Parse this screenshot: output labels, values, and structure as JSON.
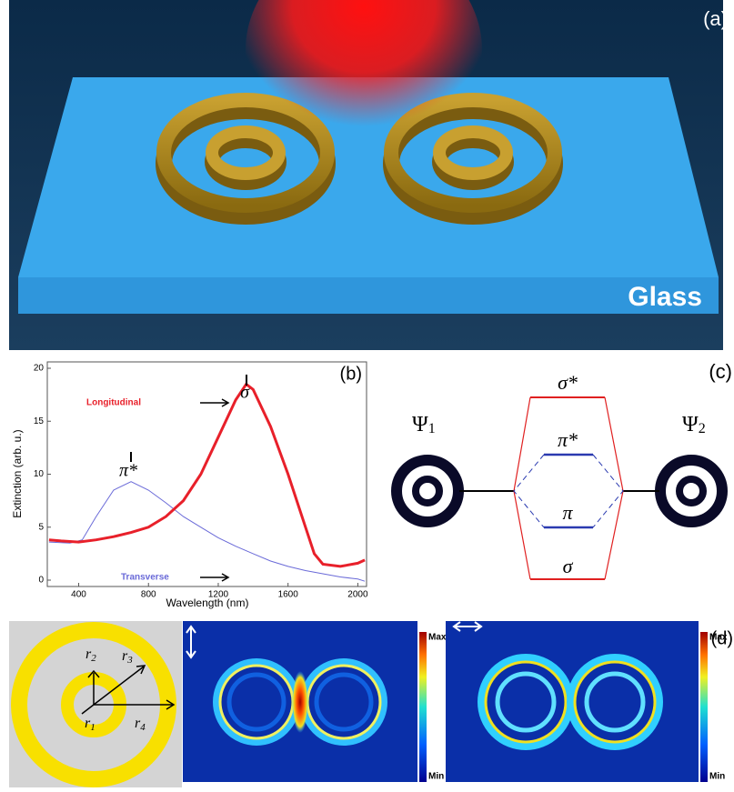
{
  "panel_a": {
    "label": "(a)",
    "substrate": "Glass"
  },
  "chart_data": {
    "type": "line",
    "panel_label": "(b)",
    "x_label": "Wavelength (nm)",
    "y_label": "Extinction (arb. u.)",
    "xlim": [
      220,
      2050
    ],
    "ylim": [
      -0.6,
      20.6
    ],
    "xticks": [
      400,
      800,
      1200,
      1600,
      2000
    ],
    "yticks": [
      0,
      5,
      10,
      15,
      20
    ],
    "series": [
      {
        "name": "Longitudinal",
        "color": "#e8202a",
        "x": [
          230,
          300,
          400,
          500,
          600,
          700,
          800,
          900,
          1000,
          1100,
          1200,
          1300,
          1360,
          1400,
          1500,
          1600,
          1700,
          1750,
          1800,
          1900,
          2000,
          2040
        ],
        "values": [
          3.8,
          3.7,
          3.6,
          3.8,
          4.1,
          4.5,
          5.0,
          6.0,
          7.5,
          10.0,
          13.5,
          17.0,
          18.5,
          18.0,
          14.5,
          10.0,
          5.0,
          2.5,
          1.5,
          1.3,
          1.6,
          1.9
        ]
      },
      {
        "name": "Transverse",
        "color": "#6a6ad8",
        "x": [
          230,
          350,
          420,
          500,
          600,
          700,
          800,
          900,
          1000,
          1100,
          1200,
          1300,
          1400,
          1500,
          1600,
          1700,
          1800,
          1900,
          2000,
          2040
        ],
        "values": [
          3.6,
          3.5,
          3.8,
          6.0,
          8.5,
          9.3,
          8.5,
          7.3,
          6.0,
          5.0,
          4.0,
          3.2,
          2.5,
          1.8,
          1.3,
          0.9,
          0.6,
          0.3,
          0.1,
          -0.1
        ]
      }
    ],
    "annotations": {
      "longitudinal_peak": "σ",
      "transverse_peak": "π*"
    }
  },
  "panel_c": {
    "label": "(c)",
    "psi1": {
      "symbol": "Ψ",
      "sub": "1"
    },
    "psi2": {
      "symbol": "Ψ",
      "sub": "2"
    },
    "levels": [
      "σ*",
      "π*",
      "π",
      "σ"
    ]
  },
  "panel_d": {
    "label": "(d)",
    "radii": [
      {
        "symbol": "r",
        "sub": "1"
      },
      {
        "symbol": "r",
        "sub": "2"
      },
      {
        "symbol": "r",
        "sub": "3"
      },
      {
        "symbol": "r",
        "sub": "4"
      }
    ],
    "colorbar_max": "Max",
    "colorbar_min": "Min"
  }
}
